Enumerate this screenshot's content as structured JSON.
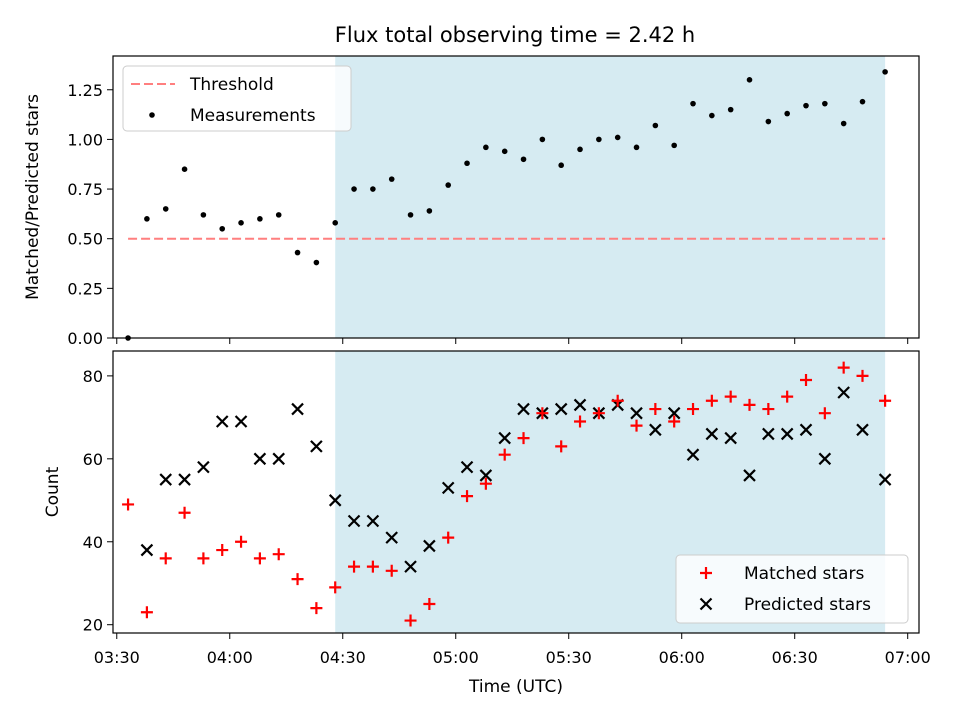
{
  "title": "Flux total observing time = 2.42 h",
  "colors": {
    "threshold": "#ff7f7f",
    "measurements": "#000000",
    "matched": "#ff0000",
    "predicted": "#000000",
    "shade": "#add8e6"
  },
  "chart_data": [
    {
      "type": "scatter",
      "ylabel": "Matched/Predicted stars",
      "ylim": [
        0,
        1.42
      ],
      "yticks": [
        0,
        0.25,
        0.5,
        0.75,
        1.0,
        1.25
      ],
      "ytick_labels": [
        "0.00",
        "0.25",
        "0.50",
        "0.75",
        "1.00",
        "1.25"
      ],
      "shaded_region": [
        "04:28",
        "06:54"
      ],
      "legend": [
        "Threshold",
        "Measurements"
      ],
      "legend_position": "top-left",
      "series": [
        {
          "name": "Threshold",
          "style": "dashed-line",
          "x": [
            "03:33",
            "06:54"
          ],
          "y": [
            0.5,
            0.5
          ]
        },
        {
          "name": "Measurements",
          "style": "dot",
          "x": [
            "03:33",
            "03:38",
            "03:43",
            "03:48",
            "03:53",
            "03:58",
            "04:03",
            "04:08",
            "04:13",
            "04:18",
            "04:23",
            "04:28",
            "04:33",
            "04:38",
            "04:43",
            "04:48",
            "04:53",
            "04:58",
            "05:03",
            "05:08",
            "05:13",
            "05:18",
            "05:23",
            "05:28",
            "05:33",
            "05:38",
            "05:43",
            "05:48",
            "05:53",
            "05:58",
            "06:03",
            "06:08",
            "06:13",
            "06:18",
            "06:23",
            "06:28",
            "06:33",
            "06:38",
            "06:43",
            "06:48",
            "06:54"
          ],
          "y": [
            0.0,
            0.6,
            0.65,
            0.85,
            0.62,
            0.55,
            0.58,
            0.6,
            0.62,
            0.43,
            0.38,
            0.58,
            0.75,
            0.75,
            0.8,
            0.62,
            0.64,
            0.77,
            0.88,
            0.96,
            0.94,
            0.9,
            1.0,
            0.87,
            0.95,
            1.0,
            1.01,
            0.96,
            1.07,
            0.97,
            1.18,
            1.12,
            1.15,
            1.3,
            1.09,
            1.13,
            1.17,
            1.18,
            1.08,
            1.19,
            1.34
          ]
        }
      ]
    },
    {
      "type": "scatter",
      "xlabel": "Time (UTC)",
      "ylabel": "Count",
      "ylim": [
        18,
        86
      ],
      "yticks": [
        20,
        40,
        60,
        80
      ],
      "ytick_labels": [
        "20",
        "40",
        "60",
        "80"
      ],
      "xlim": [
        "03:29",
        "07:03"
      ],
      "xticks": [
        "03:30",
        "04:00",
        "04:30",
        "05:00",
        "05:30",
        "06:00",
        "06:30",
        "07:00"
      ],
      "xtick_labels": [
        "03:30",
        "04:00",
        "04:30",
        "05:00",
        "05:30",
        "06:00",
        "06:30",
        "07:00"
      ],
      "shaded_region": [
        "04:28",
        "06:54"
      ],
      "legend": [
        "Matched stars",
        "Predicted stars"
      ],
      "legend_position": "bottom-right",
      "series": [
        {
          "name": "Matched stars",
          "marker": "plus",
          "x": [
            "03:33",
            "03:38",
            "03:43",
            "03:48",
            "03:53",
            "03:58",
            "04:03",
            "04:08",
            "04:13",
            "04:18",
            "04:23",
            "04:28",
            "04:33",
            "04:38",
            "04:43",
            "04:48",
            "04:53",
            "04:58",
            "05:03",
            "05:08",
            "05:13",
            "05:18",
            "05:23",
            "05:28",
            "05:33",
            "05:38",
            "05:43",
            "05:48",
            "05:53",
            "05:58",
            "06:03",
            "06:08",
            "06:13",
            "06:18",
            "06:23",
            "06:28",
            "06:33",
            "06:38",
            "06:43",
            "06:48",
            "06:54"
          ],
          "y": [
            49,
            23,
            36,
            47,
            36,
            38,
            40,
            36,
            37,
            31,
            24,
            29,
            34,
            34,
            33,
            21,
            25,
            41,
            51,
            54,
            61,
            65,
            71,
            63,
            69,
            71,
            74,
            68,
            72,
            69,
            72,
            74,
            75,
            73,
            72,
            75,
            79,
            71,
            82,
            80,
            74
          ]
        },
        {
          "name": "Predicted stars",
          "marker": "x",
          "x": [
            "03:38",
            "03:43",
            "03:48",
            "03:53",
            "03:58",
            "04:03",
            "04:08",
            "04:13",
            "04:18",
            "04:23",
            "04:28",
            "04:33",
            "04:38",
            "04:43",
            "04:48",
            "04:53",
            "04:58",
            "05:03",
            "05:08",
            "05:13",
            "05:18",
            "05:23",
            "05:28",
            "05:33",
            "05:38",
            "05:43",
            "05:48",
            "05:53",
            "05:58",
            "06:03",
            "06:08",
            "06:13",
            "06:18",
            "06:23",
            "06:28",
            "06:33",
            "06:38",
            "06:43",
            "06:48",
            "06:54"
          ],
          "y": [
            38,
            55,
            55,
            58,
            69,
            69,
            60,
            60,
            72,
            63,
            50,
            45,
            45,
            41,
            34,
            39,
            53,
            58,
            56,
            65,
            72,
            71,
            72,
            73,
            71,
            73,
            71,
            67,
            71,
            61,
            66,
            65,
            56,
            66,
            66,
            67,
            60,
            76,
            67,
            55
          ]
        }
      ]
    }
  ]
}
